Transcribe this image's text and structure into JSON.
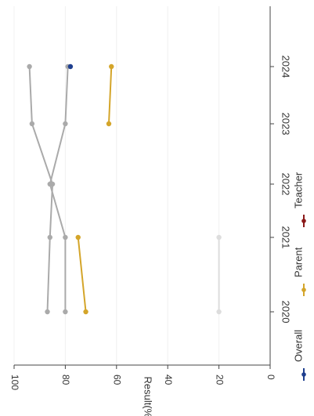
{
  "chart_data": {
    "type": "line",
    "orientation": "rotated-90-clockwise",
    "xlabel": "",
    "ylabel": "Result(%)",
    "ylim": [
      0,
      100
    ],
    "y_ticks": [
      0,
      20,
      40,
      60,
      80,
      100
    ],
    "categories": [
      "2020",
      "2021",
      "2022",
      "2023",
      "2024"
    ],
    "grid": true,
    "legend_position": "bottom",
    "legend": [
      "Overall",
      "Parent",
      "Teacher"
    ],
    "series": [
      {
        "name": "Overall",
        "values": [
          null,
          null,
          null,
          null,
          78
        ],
        "color": "#1f3f8f"
      },
      {
        "name": "Parent",
        "values": [
          72,
          75,
          null,
          63,
          62
        ],
        "color": "#d4a52a"
      },
      {
        "name": "Teacher",
        "values": [
          null,
          null,
          null,
          null,
          null
        ],
        "color": "#8b1a1a"
      }
    ],
    "unlabeled_series": [
      {
        "values": [
          87,
          86,
          85,
          93,
          94
        ],
        "color": "#aaaaaa"
      },
      {
        "values": [
          80,
          80,
          86,
          80,
          79
        ],
        "color": "#aaaaaa"
      },
      {
        "values": [
          20,
          20,
          null,
          null,
          null
        ],
        "color": "#dddddd"
      }
    ]
  }
}
